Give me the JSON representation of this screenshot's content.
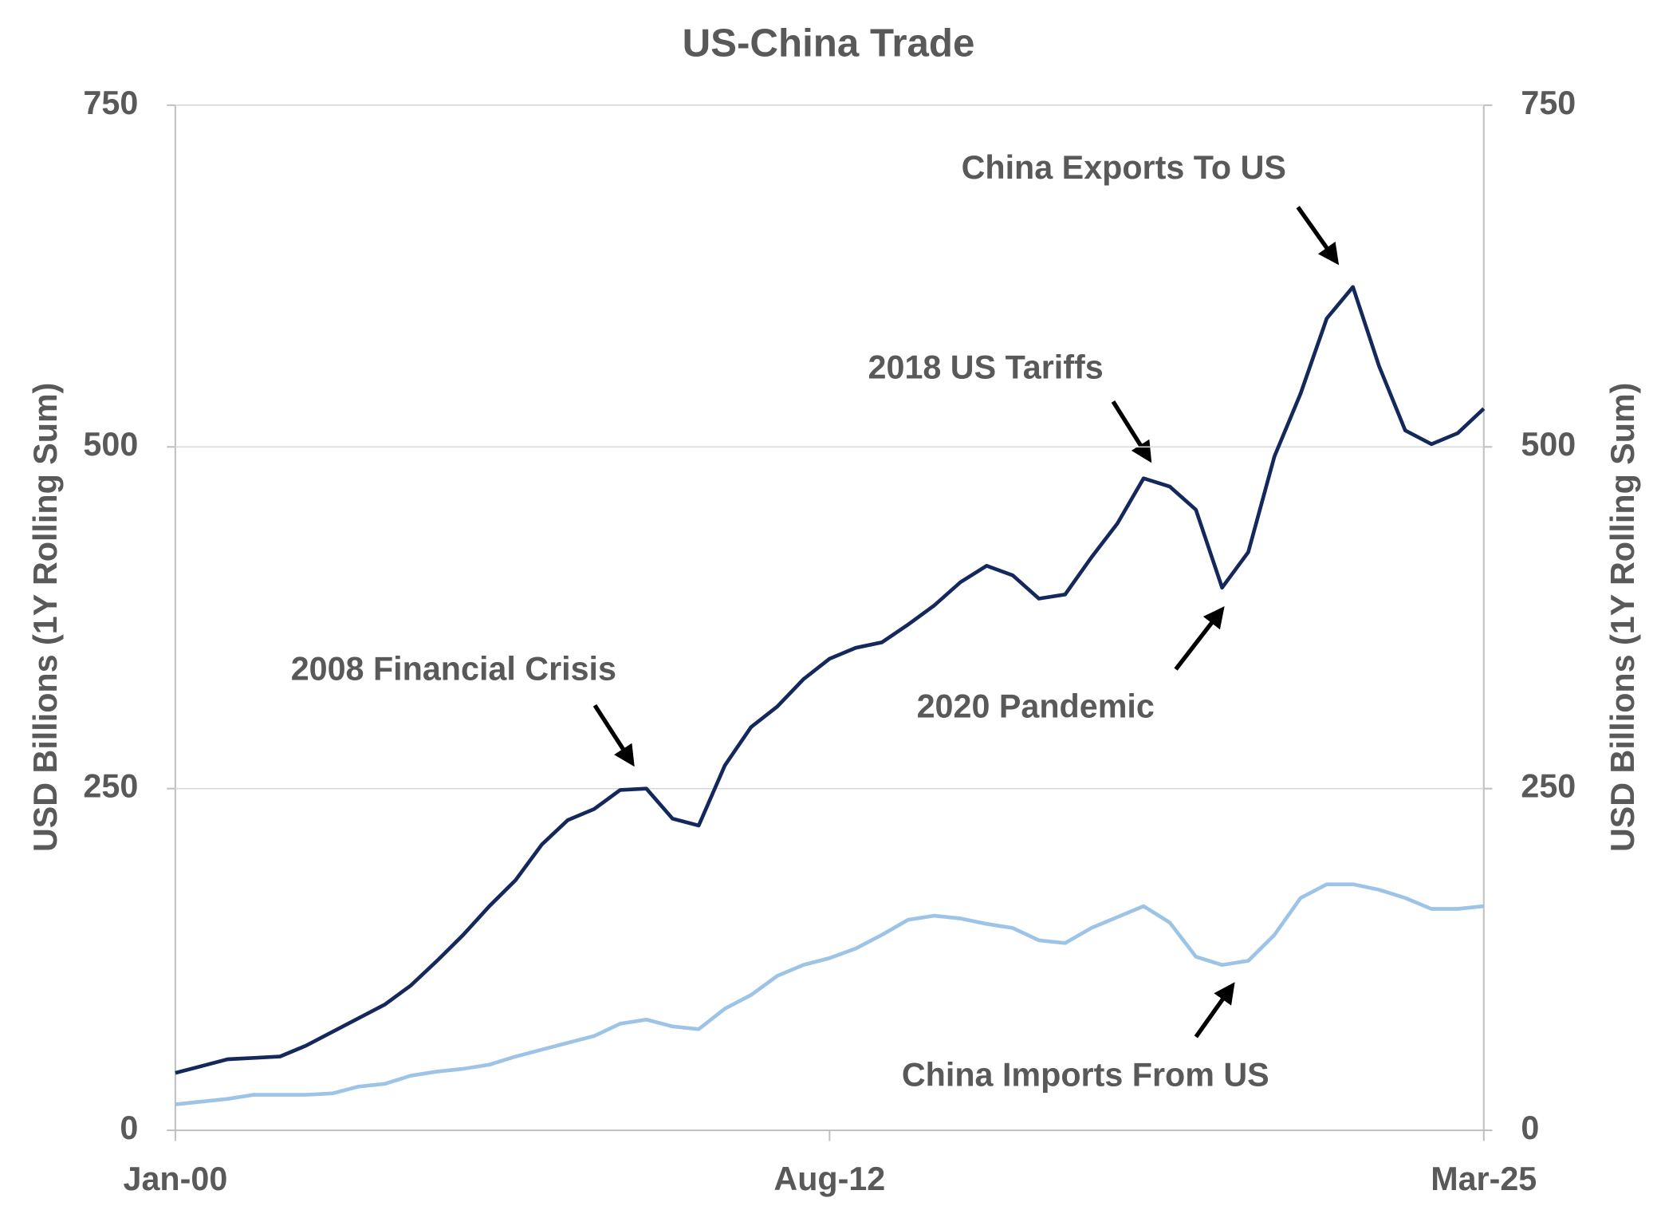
{
  "chart_data": {
    "type": "line",
    "title": "US-China Trade",
    "y_label": "USD Billions  (1Y  Rolling  Sum)",
    "y2_label": "USD Billions  (1Y  Rolling  Sum)",
    "categories": [
      "Jan-00",
      null,
      null,
      null,
      null,
      null,
      null,
      null,
      null,
      null,
      null,
      null,
      null,
      null,
      null,
      null,
      null,
      null,
      null,
      null,
      null,
      null,
      null,
      null,
      null,
      "Aug-12",
      null,
      null,
      null,
      null,
      null,
      null,
      null,
      null,
      null,
      null,
      null,
      null,
      null,
      null,
      null,
      null,
      null,
      null,
      null,
      null,
      null,
      null,
      null,
      null,
      "Mar-25"
    ],
    "series": [
      {
        "name": "China Exports To US",
        "color": "#14285c",
        "values": [
          42,
          47,
          52,
          53,
          54,
          62,
          72,
          82,
          92,
          106,
          124,
          143,
          164,
          183,
          209,
          227,
          235,
          249,
          250,
          228,
          223,
          267,
          295,
          310,
          330,
          345,
          353,
          357,
          370,
          384,
          401,
          413,
          406,
          389,
          392,
          419,
          444,
          477,
          471,
          454,
          397,
          423,
          493,
          539,
          594,
          617,
          559,
          512,
          502,
          510,
          528
        ]
      },
      {
        "name": "China Imports From US",
        "color": "#9dc3e6",
        "values": [
          19,
          21,
          23,
          26,
          26,
          26,
          27,
          32,
          34,
          40,
          43,
          45,
          48,
          54,
          59,
          64,
          69,
          78,
          81,
          76,
          74,
          89,
          99,
          113,
          121,
          126,
          133,
          143,
          154,
          157,
          155,
          151,
          148,
          139,
          137,
          148,
          156,
          164,
          152,
          127,
          121,
          124,
          143,
          170,
          180,
          180,
          176,
          170,
          162,
          162,
          164
        ]
      }
    ],
    "annotations": [
      "China Exports To US",
      "2018 US Tariffs",
      "2008 Financial Crisis",
      "2020 Pandemic",
      "China Imports From US"
    ],
    "ylim": [
      0,
      750
    ],
    "yticks": [
      0,
      250,
      500,
      750
    ],
    "y2lim": [
      0,
      750
    ],
    "y2ticks": [
      0,
      250,
      500,
      750
    ],
    "grid": true
  }
}
